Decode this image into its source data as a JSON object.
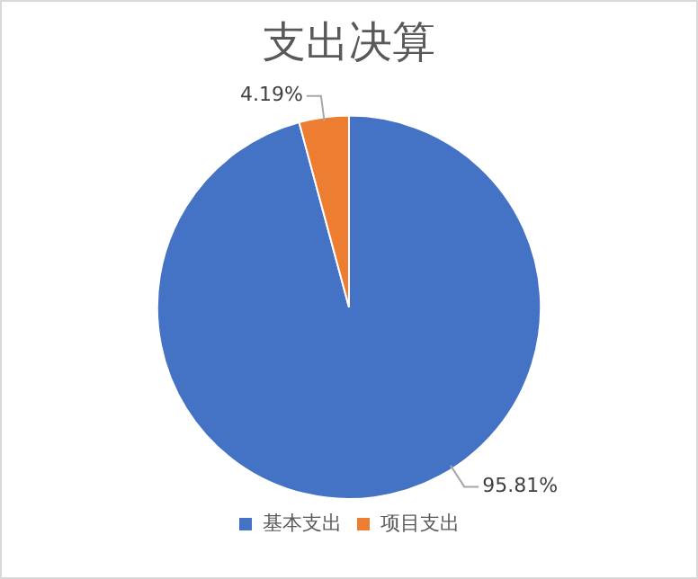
{
  "chart_data": {
    "type": "pie",
    "title": "支出决算",
    "categories": [
      "基本支出",
      "项目支出"
    ],
    "values": [
      95.81,
      4.19
    ],
    "colors": [
      "#4472c4",
      "#ed7d31"
    ],
    "value_labels": [
      "95.81%",
      "4.19%"
    ],
    "legend": "bottom"
  }
}
